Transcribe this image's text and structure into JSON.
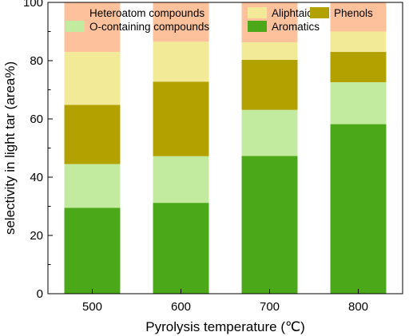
{
  "chart_data": {
    "type": "bar",
    "stacked": true,
    "categories": [
      "500",
      "600",
      "700",
      "800"
    ],
    "xlabel": "Pyrolysis temperature (℃)",
    "ylabel": "selectivity in light tar (area%)",
    "ylim": [
      0,
      100
    ],
    "yticks": [
      0,
      20,
      40,
      60,
      80,
      100
    ],
    "grid": false,
    "legend_position": "top",
    "series": [
      {
        "name": "Aromatics",
        "color": "#4aa819",
        "values": [
          29.5,
          31.2,
          47.3,
          58.2
        ]
      },
      {
        "name": "O-containing compounds",
        "color": "#c3eb9f",
        "values": [
          15.0,
          16.0,
          15.8,
          14.4
        ]
      },
      {
        "name": "Phenols",
        "color": "#b3a100",
        "values": [
          20.3,
          25.6,
          17.2,
          10.4
        ]
      },
      {
        "name": "Aliphtaics",
        "color": "#f3ea98",
        "values": [
          18.2,
          13.7,
          6.0,
          7.0
        ]
      },
      {
        "name": "Heteroatom compounds",
        "color": "#fdc29b",
        "values": [
          17.0,
          13.5,
          13.7,
          10.0
        ]
      }
    ],
    "legend_order": [
      4,
      3,
      2,
      1,
      0
    ]
  }
}
